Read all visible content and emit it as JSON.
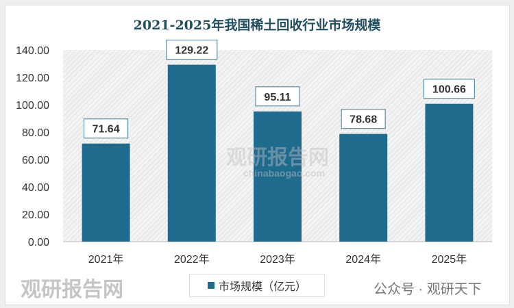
{
  "chart_data": {
    "type": "bar",
    "title": "2021-2025年我国稀土回收行业市场规模",
    "categories": [
      "2021年",
      "2022年",
      "2023年",
      "2024年",
      "2025年"
    ],
    "series": [
      {
        "name": "市场规模（亿元）",
        "values": [
          71.64,
          129.22,
          95.11,
          78.68,
          100.66
        ]
      }
    ],
    "data_labels": [
      "71.64",
      "129.22",
      "95.11",
      "78.68",
      "100.66"
    ],
    "yticks": [
      "0.00",
      "20.00",
      "40.00",
      "60.00",
      "80.00",
      "100.00",
      "120.00",
      "140.00"
    ],
    "ylim": [
      0,
      140
    ],
    "grid": false,
    "legend": "bottom",
    "bar_color": "#1f6b8e",
    "plot_background": "hatched light gray"
  },
  "watermark": {
    "logo": "观研报告网",
    "url": "chinabaogao.com",
    "wechat": "公众号 · 观研天下"
  }
}
